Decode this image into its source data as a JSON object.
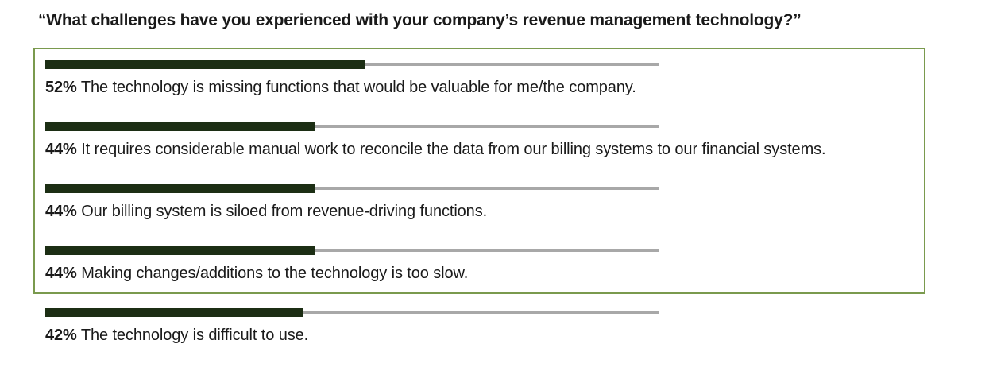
{
  "chart_data": {
    "type": "bar",
    "title": "“What challenges have you experienced with your company’s revenue management technology?”",
    "xlim": [
      0,
      100
    ],
    "highlight_rows": [
      0,
      1,
      2,
      3
    ],
    "colors": {
      "bar_fill": "#1c2e14",
      "track": "#a8a8a8",
      "highlight_border": "#7a9a4e"
    },
    "items": [
      {
        "value": 52,
        "value_label": "52%",
        "text": "The technology is missing functions that would be valuable for me/the company."
      },
      {
        "value": 44,
        "value_label": "44%",
        "text": "It requires considerable manual work to reconcile the data from our billing systems to our financial systems."
      },
      {
        "value": 44,
        "value_label": "44%",
        "text": "Our billing system is siloed from revenue-driving functions."
      },
      {
        "value": 44,
        "value_label": "44%",
        "text": "Making changes/additions to the technology is too slow."
      },
      {
        "value": 42,
        "value_label": "42%",
        "text": "The technology is difficult to use."
      }
    ]
  }
}
